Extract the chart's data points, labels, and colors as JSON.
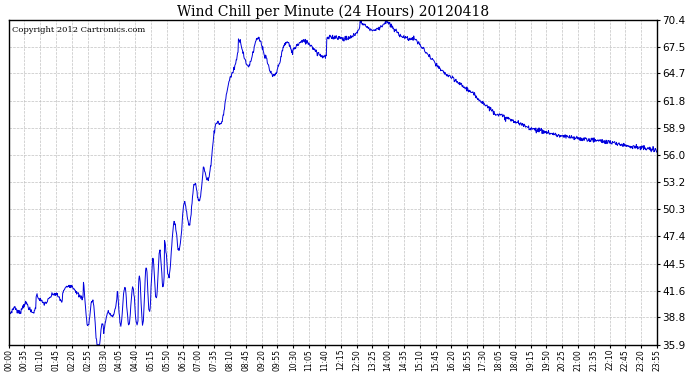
{
  "title": "Wind Chill per Minute (24 Hours) 20120418",
  "copyright_text": "Copyright 2012 Cartronics.com",
  "line_color": "#0000dd",
  "bg_color": "#ffffff",
  "plot_bg_color": "#ffffff",
  "grid_color": "#bbbbbb",
  "ylim": [
    35.9,
    70.4
  ],
  "yticks": [
    35.9,
    38.8,
    41.6,
    44.5,
    47.4,
    50.3,
    53.2,
    56.0,
    58.9,
    61.8,
    64.7,
    67.5,
    70.4
  ],
  "xtick_labels": [
    "00:00",
    "00:35",
    "01:10",
    "01:45",
    "02:20",
    "02:55",
    "03:30",
    "04:05",
    "04:40",
    "05:15",
    "05:50",
    "06:25",
    "07:00",
    "07:35",
    "08:10",
    "08:45",
    "09:20",
    "09:55",
    "10:30",
    "11:05",
    "11:40",
    "12:15",
    "12:50",
    "13:25",
    "14:00",
    "14:35",
    "15:10",
    "15:45",
    "16:20",
    "16:55",
    "17:30",
    "18:05",
    "18:40",
    "19:15",
    "19:50",
    "20:25",
    "21:00",
    "21:35",
    "22:10",
    "22:45",
    "23:20",
    "23:55"
  ],
  "num_points": 1440,
  "figsize": [
    6.9,
    3.75
  ],
  "dpi": 100
}
